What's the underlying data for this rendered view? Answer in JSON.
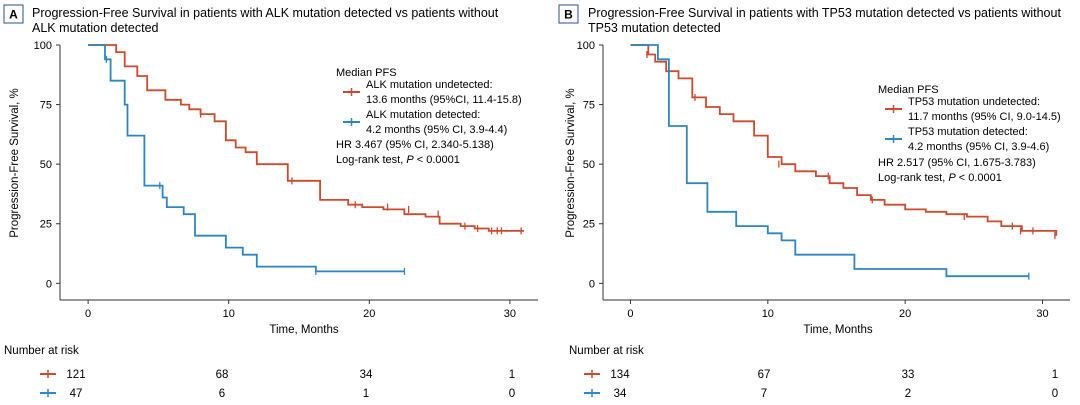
{
  "chart_data": [
    {
      "type": "line",
      "panel": "A",
      "title_line1": "Progression-Free Survival in patients with ALK mutation detected vs patients without",
      "title_line2": "ALK mutation detected",
      "xlabel": "Time, Months",
      "ylabel": "Progression-Free Survival, %",
      "xlim": [
        -2,
        32
      ],
      "ylim": [
        -7,
        100
      ],
      "xticks": [
        0,
        10,
        20,
        30
      ],
      "yticks": [
        0,
        25,
        50,
        75,
        100
      ],
      "legend_title": "Median PFS",
      "stats_lines": [
        "HR 3.467 (95% CI, 2.340-5.138)",
        "Log-rank test, "
      ],
      "p_text": "P",
      "p_value_text": " < 0.0001",
      "risk_title": "Number at risk",
      "risk_times": [
        0,
        10,
        20,
        30
      ],
      "series": [
        {
          "name": "ALK mutation undetected:",
          "median": "13.6 months (95%CI, 11.4-15.8)",
          "color": "#cc4a2e",
          "x": [
            0,
            2.0,
            2.6,
            3.5,
            4.2,
            5.5,
            6.6,
            7.2,
            8.0,
            9.0,
            9.8,
            10.5,
            11.2,
            12.0,
            13.0,
            14.2,
            15.0,
            16.5,
            17.5,
            18.5,
            19.5,
            21.0,
            22.5,
            24.0,
            25.0,
            26.5,
            27.5,
            28.5,
            31.0
          ],
          "y": [
            100,
            97,
            91,
            87,
            81,
            77,
            75,
            73,
            71,
            68,
            60,
            57,
            55,
            50,
            50,
            43,
            43,
            35,
            35,
            33,
            32,
            31,
            29,
            28,
            25,
            24,
            23,
            22,
            22
          ],
          "censor_x": [
            8.0,
            14.5,
            19.0,
            21.3,
            22.8,
            24.9,
            26.8,
            27.7,
            28.7,
            29.1,
            29.4,
            30.8
          ],
          "censor_y": [
            71,
            43,
            33,
            32,
            31,
            29,
            24,
            23,
            22,
            22,
            22,
            22
          ]
        },
        {
          "name": "ALK mutation detected:",
          "median": "4.2 months (95% CI, 3.9-4.4)",
          "color": "#2e86c1",
          "x": [
            0,
            1.2,
            1.6,
            2.6,
            2.8,
            4.0,
            4.5,
            5.3,
            5.6,
            6.8,
            7.6,
            9.8,
            11.0,
            12.0,
            16.2,
            22.5
          ],
          "y": [
            100,
            94,
            85,
            75,
            62,
            41,
            41,
            36,
            32,
            29,
            20,
            15,
            12,
            7,
            5,
            5
          ],
          "censor_x": [
            1.3,
            5.1,
            16.2,
            22.5
          ],
          "censor_y": [
            94,
            41,
            5,
            5
          ]
        }
      ],
      "risk_rows": [
        {
          "color": "#cc4a2e",
          "values": [
            "121",
            "68",
            "34",
            "1"
          ]
        },
        {
          "color": "#2e86c1",
          "values": [
            "47",
            "6",
            "1",
            "0"
          ]
        }
      ]
    },
    {
      "type": "line",
      "panel": "B",
      "title_line1": "Progression-Free Survival in patients with TP53 mutation detected vs patients without",
      "title_line2": "TP53 mutation detected",
      "xlabel": "Time, Months",
      "ylabel": "Progression-Free Survival, %",
      "xlim": [
        -2,
        32
      ],
      "ylim": [
        -7,
        100
      ],
      "xticks": [
        0,
        10,
        20,
        30
      ],
      "yticks": [
        0,
        25,
        50,
        75,
        100
      ],
      "legend_title": "Median PFS",
      "stats_lines": [
        "HR 2.517 (95% CI, 1.675-3.783)",
        "Log-rank test, "
      ],
      "p_text": "P",
      "p_value_text": " < 0.0001",
      "risk_title": "Number at risk",
      "risk_times": [
        0,
        10,
        20,
        30
      ],
      "series": [
        {
          "name": "TP53 mutation undetected:",
          "median": "11.7 months (95% CI, 9.0-14.5)",
          "color": "#cc4a2e",
          "x": [
            0,
            1.3,
            1.8,
            2.6,
            3.5,
            4.5,
            5.5,
            6.5,
            7.5,
            9.0,
            10.0,
            11.0,
            12.0,
            13.5,
            14.5,
            15.5,
            16.5,
            17.5,
            18.5,
            20.0,
            21.5,
            23.0,
            24.5,
            26.0,
            27.0,
            28.5,
            31.0
          ],
          "y": [
            100,
            96,
            93,
            89,
            86,
            78,
            74,
            71,
            68,
            62,
            53,
            50,
            47,
            45,
            42,
            40,
            37,
            35,
            33,
            31,
            30,
            29,
            28,
            26,
            24,
            22,
            20
          ],
          "censor_x": [
            1.2,
            4.7,
            10.8,
            14.4,
            17.6,
            24.3,
            27.8,
            28.4,
            29.3,
            30.9
          ],
          "censor_y": [
            96,
            78,
            50,
            45,
            35,
            28,
            24,
            22,
            22,
            20
          ],
          "legend_text_visible": true
        },
        {
          "name": "TP53 mutation detected:",
          "median": "4.2 months (95% CI, 3.9-4.6)",
          "color": "#2e86c1",
          "x": [
            0,
            2.0,
            2.6,
            2.8,
            3.8,
            4.1,
            5.3,
            5.6,
            7.7,
            10.0,
            11.0,
            12.0,
            16.3,
            23.0,
            29.0
          ],
          "y": [
            100,
            94,
            94,
            66,
            66,
            42,
            42,
            30,
            24,
            21,
            18,
            12,
            6,
            3,
            3
          ],
          "censor_x": [
            29.0
          ],
          "censor_y": [
            3
          ]
        }
      ],
      "risk_rows": [
        {
          "color": "#cc4a2e",
          "values": [
            "134",
            "67",
            "33",
            "1"
          ]
        },
        {
          "color": "#2e86c1",
          "values": [
            "34",
            "7",
            "2",
            "0"
          ]
        }
      ]
    }
  ]
}
